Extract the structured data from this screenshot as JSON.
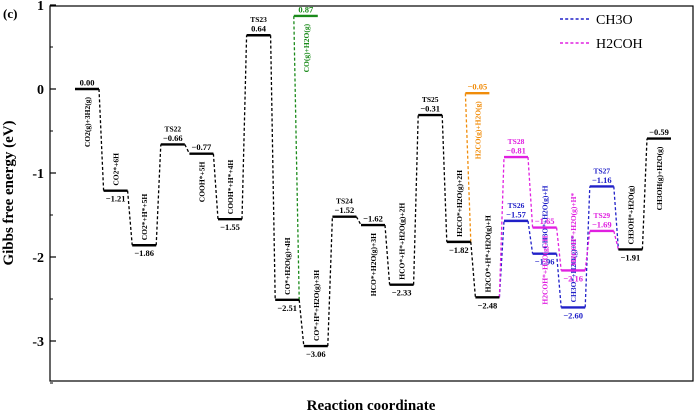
{
  "chart_data": {
    "type": "line",
    "panel_label": "(c)",
    "title": "",
    "xlabel": "Reaction coordinate",
    "ylabel": "Gibbs free energy (eV)",
    "ylim": [
      -3.5,
      1.0
    ],
    "yticks": [
      "1",
      "0",
      "-1",
      "-2",
      "-3"
    ],
    "legend": {
      "placement": "top-right",
      "entries": [
        {
          "name": "CH₃O",
          "color": "#2020c8",
          "style": "dashed"
        },
        {
          "name": "H₂COH",
          "color": "#e020e0",
          "style": "dashed"
        }
      ]
    },
    "colors": {
      "main": "#000000",
      "co_branch": "#1a8a1a",
      "h2co_branch": "#f08c0a",
      "ch3o": "#2020c8",
      "h2coh": "#e020e0"
    },
    "levels": [
      {
        "id": "L0",
        "x": 1,
        "y": 0.0,
        "value": "0.00",
        "state": "CO₂(g)+3H₂(g)",
        "color": "main"
      },
      {
        "id": "L1",
        "x": 2,
        "y": -1.21,
        "value": "−1.21",
        "state": "CO₂*+6H",
        "color": "main"
      },
      {
        "id": "L2",
        "x": 3,
        "y": -1.86,
        "value": "−1.86",
        "state": "CO₂*+H*+5H",
        "color": "main"
      },
      {
        "id": "L3",
        "x": 4,
        "y": -0.66,
        "value": "−0.66",
        "state": "TS22",
        "color": "main"
      },
      {
        "id": "L4",
        "x": 5,
        "y": -0.77,
        "value": "−0.77",
        "state": "COOH*+5H",
        "color": "main"
      },
      {
        "id": "L5",
        "x": 6,
        "y": -1.55,
        "value": "−1.55",
        "state": "COOH*+H*+4H",
        "color": "main"
      },
      {
        "id": "L6",
        "x": 7,
        "y": 0.64,
        "value": "0.64",
        "state": "TS23",
        "color": "main"
      },
      {
        "id": "L7",
        "x": 8,
        "y": -2.51,
        "value": "−2.51",
        "state": "CO*+H₂O(g)+4H",
        "color": "main"
      },
      {
        "id": "L8",
        "x": 8.65,
        "y": 0.87,
        "value": "0.87",
        "state": "CO(g)+H₂O(g)",
        "color": "co_branch"
      },
      {
        "id": "L9",
        "x": 9,
        "y": -3.06,
        "value": "−3.06",
        "state": "CO*+H*+H₂O(g)+3H",
        "color": "main"
      },
      {
        "id": "L10",
        "x": 10,
        "y": -1.52,
        "value": "−1.52",
        "state": "TS24",
        "color": "main"
      },
      {
        "id": "L11",
        "x": 11,
        "y": -1.62,
        "value": "−1.62",
        "state": "HCO*+H₂O(g)+3H",
        "color": "main"
      },
      {
        "id": "L12",
        "x": 12,
        "y": -2.33,
        "value": "−2.33",
        "state": "HCO*+H*+H₂O(g)+2H",
        "color": "main"
      },
      {
        "id": "L13",
        "x": 13,
        "y": -0.31,
        "value": "−0.31",
        "state": "TS25",
        "color": "main"
      },
      {
        "id": "L14",
        "x": 14,
        "y": -1.82,
        "value": "−1.82",
        "state": "H₂CO*+H₂O(g)+2H",
        "color": "main"
      },
      {
        "id": "L15",
        "x": 14.65,
        "y": -0.05,
        "value": "−0.05",
        "state": "H₂CO(g)+H₂O(g)",
        "color": "h2co_branch"
      },
      {
        "id": "L16",
        "x": 15,
        "y": -2.48,
        "value": "−2.48",
        "state": "H₂CO*+H*+H₂O(g)+H",
        "color": "main"
      },
      {
        "id": "L17",
        "x": 16,
        "y": -1.57,
        "value": "−1.57",
        "state": "TS26",
        "color": "ch3o"
      },
      {
        "id": "L18",
        "x": 16,
        "y": -0.81,
        "value": "−0.81",
        "state": "TS28",
        "color": "h2coh"
      },
      {
        "id": "L19",
        "x": 17,
        "y": -1.96,
        "value": "−1.96",
        "state": "CH₃O*+H₂O(g)+H",
        "color": "ch3o"
      },
      {
        "id": "L20",
        "x": 17,
        "y": -1.65,
        "value": "−1.65",
        "state": "H₂COH*+H₂O(g)+H",
        "color": "h2coh"
      },
      {
        "id": "L21",
        "x": 18,
        "y": -2.6,
        "value": "−2.60",
        "state": "CH₃O*+H₂O(g)+H*",
        "color": "ch3o"
      },
      {
        "id": "L22",
        "x": 18,
        "y": -2.16,
        "value": "−2.16",
        "state": "H₂COH*+H₂O(g)+H*",
        "color": "h2coh"
      },
      {
        "id": "L23",
        "x": 19,
        "y": -1.16,
        "value": "−1.16",
        "state": "TS27",
        "color": "ch3o"
      },
      {
        "id": "L24",
        "x": 19,
        "y": -1.69,
        "value": "−1.69",
        "state": "TS29",
        "color": "h2coh"
      },
      {
        "id": "L25",
        "x": 20,
        "y": -1.91,
        "value": "−1.91",
        "state": "CH₃OH*+H₂O(g)",
        "color": "main"
      },
      {
        "id": "L26",
        "x": 21,
        "y": -0.59,
        "value": "−0.59",
        "state": "CH₃OH(g)+H₂O(g)",
        "color": "main"
      }
    ],
    "connections": [
      [
        "L0",
        "L1",
        "main"
      ],
      [
        "L1",
        "L2",
        "main"
      ],
      [
        "L2",
        "L3",
        "main"
      ],
      [
        "L3",
        "L4",
        "main"
      ],
      [
        "L4",
        "L5",
        "main"
      ],
      [
        "L5",
        "L6",
        "main"
      ],
      [
        "L6",
        "L7",
        "main"
      ],
      [
        "L7",
        "L8",
        "co_branch"
      ],
      [
        "L7",
        "L9",
        "main"
      ],
      [
        "L9",
        "L10",
        "main"
      ],
      [
        "L10",
        "L11",
        "main"
      ],
      [
        "L11",
        "L12",
        "main"
      ],
      [
        "L12",
        "L13",
        "main"
      ],
      [
        "L13",
        "L14",
        "main"
      ],
      [
        "L14",
        "L15",
        "h2co_branch"
      ],
      [
        "L14",
        "L16",
        "main"
      ],
      [
        "L16",
        "L17",
        "ch3o"
      ],
      [
        "L17",
        "L19",
        "ch3o"
      ],
      [
        "L19",
        "L21",
        "ch3o"
      ],
      [
        "L21",
        "L23",
        "ch3o"
      ],
      [
        "L23",
        "L25",
        "ch3o"
      ],
      [
        "L16",
        "L18",
        "h2coh"
      ],
      [
        "L18",
        "L20",
        "h2coh"
      ],
      [
        "L20",
        "L22",
        "h2coh"
      ],
      [
        "L22",
        "L24",
        "h2coh"
      ],
      [
        "L24",
        "L25",
        "h2coh"
      ],
      [
        "L25",
        "L26",
        "main"
      ]
    ]
  }
}
